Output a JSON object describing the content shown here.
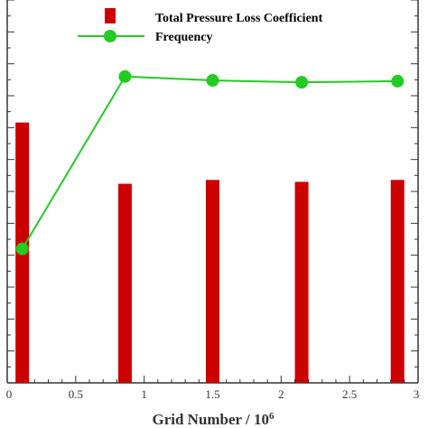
{
  "chart_data": {
    "type": "bar",
    "xlabel": "Grid Number / 10",
    "xlabel_superscript": "6",
    "xlim": [
      0,
      3
    ],
    "x_ticks": [
      "0",
      "0.5",
      "1",
      "1.5",
      "2",
      "2.5",
      "3"
    ],
    "x_tick_values": [
      0,
      0.5,
      1,
      1.5,
      2,
      2.5,
      3
    ],
    "x": [
      0.11,
      0.86,
      1.5,
      2.15,
      2.85
    ],
    "legend_position": "top-center",
    "grid": false,
    "series": [
      {
        "name": "Total Pressure Loss Coefficient",
        "type": "bar",
        "color": "#cc0000",
        "axis": "left",
        "ylim": [
          0,
          1
        ],
        "values": [
          0.68,
          0.52,
          0.53,
          0.525,
          0.53
        ]
      },
      {
        "name": "Frequency",
        "type": "line",
        "color": "#22cc22",
        "marker": "circle",
        "axis": "right",
        "ylim": [
          0,
          1
        ],
        "values": [
          0.35,
          0.8,
          0.79,
          0.785,
          0.788
        ]
      }
    ]
  }
}
